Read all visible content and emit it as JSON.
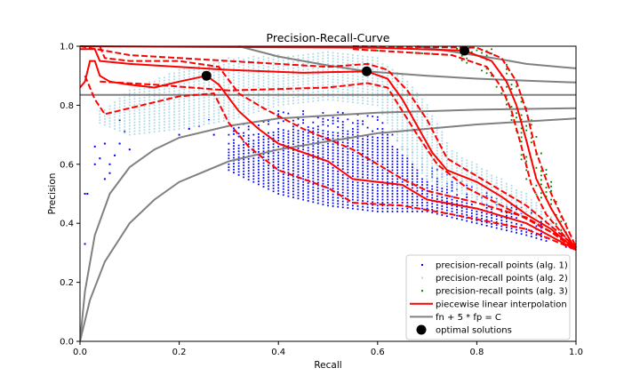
{
  "chart_data": {
    "type": "scatter",
    "title": "Precision-Recall-Curve",
    "xlabel": "Recall",
    "ylabel": "Precision",
    "xlim": [
      0,
      1
    ],
    "ylim": [
      0,
      1
    ],
    "xticks": [
      "0.0",
      "0.2",
      "0.4",
      "0.6",
      "0.8",
      "1.0"
    ],
    "yticks": [
      "0.0",
      "0.2",
      "0.4",
      "0.6",
      "0.8",
      "1.0"
    ],
    "grid": false,
    "legend_position": "bottom-right",
    "colors": {
      "alg1": "#0000ff",
      "alg2": "#add8e6",
      "alg3": "#008000",
      "interp": "#ff0000",
      "iso": "#808080",
      "optimal": "#000000"
    },
    "scatter_series": [
      {
        "name": "precision-recall points (alg. 1)",
        "color": "#0000ff",
        "x_range": [
          0.3,
          1.0
        ],
        "x_step": 0.01,
        "y_step": 0.01,
        "upper": [
          [
            0.3,
            0.72
          ],
          [
            0.4,
            0.78
          ],
          [
            0.5,
            0.78
          ],
          [
            0.6,
            0.76
          ],
          [
            0.65,
            0.7
          ],
          [
            0.7,
            0.6
          ],
          [
            0.8,
            0.52
          ],
          [
            0.9,
            0.45
          ],
          [
            1.0,
            0.33
          ]
        ],
        "lower": [
          [
            0.3,
            0.58
          ],
          [
            0.4,
            0.5
          ],
          [
            0.5,
            0.46
          ],
          [
            0.6,
            0.44
          ],
          [
            0.7,
            0.44
          ],
          [
            0.8,
            0.4
          ],
          [
            0.9,
            0.36
          ],
          [
            1.0,
            0.31
          ]
        ],
        "sparse": [
          [
            0.01,
            0.5
          ],
          [
            0.015,
            0.5
          ],
          [
            0.01,
            0.33
          ],
          [
            0.03,
            0.66
          ],
          [
            0.03,
            0.6
          ],
          [
            0.04,
            0.62
          ],
          [
            0.05,
            0.67
          ],
          [
            0.05,
            0.55
          ],
          [
            0.06,
            0.57
          ],
          [
            0.06,
            0.6
          ],
          [
            0.07,
            0.63
          ],
          [
            0.08,
            0.67
          ],
          [
            0.09,
            0.71
          ],
          [
            0.08,
            0.75
          ],
          [
            0.1,
            0.65
          ],
          [
            0.2,
            0.7
          ],
          [
            0.22,
            0.72
          ],
          [
            0.24,
            0.73
          ],
          [
            0.26,
            0.75
          ],
          [
            0.27,
            0.7
          ]
        ]
      },
      {
        "name": "precision-recall points (alg. 2)",
        "color": "#add8e6",
        "x_range": [
          0.04,
          1.0
        ],
        "x_step": 0.01,
        "y_step": 0.01,
        "upper": [
          [
            0.04,
            0.78
          ],
          [
            0.1,
            0.85
          ],
          [
            0.2,
            0.92
          ],
          [
            0.3,
            0.96
          ],
          [
            0.4,
            0.97
          ],
          [
            0.5,
            0.98
          ],
          [
            0.6,
            0.96
          ],
          [
            0.65,
            0.9
          ],
          [
            0.7,
            0.8
          ],
          [
            0.75,
            0.65
          ],
          [
            0.8,
            0.6
          ],
          [
            0.9,
            0.5
          ],
          [
            1.0,
            0.35
          ]
        ],
        "lower": [
          [
            0.04,
            0.74
          ],
          [
            0.1,
            0.7
          ],
          [
            0.2,
            0.72
          ],
          [
            0.3,
            0.75
          ],
          [
            0.4,
            0.8
          ],
          [
            0.5,
            0.82
          ],
          [
            0.6,
            0.8
          ],
          [
            0.65,
            0.65
          ],
          [
            0.7,
            0.55
          ],
          [
            0.8,
            0.48
          ],
          [
            0.9,
            0.42
          ],
          [
            1.0,
            0.32
          ]
        ]
      },
      {
        "name": "precision-recall points (alg. 3)",
        "color": "#008000",
        "x_range": [
          0.55,
          1.0
        ],
        "x_step": 0.01,
        "y_step": 0.015,
        "upper": [
          [
            0.55,
            1.0
          ],
          [
            0.85,
            0.99
          ],
          [
            0.9,
            0.8
          ],
          [
            0.95,
            0.55
          ],
          [
            1.0,
            0.32
          ]
        ],
        "lower": [
          [
            0.55,
            0.99
          ],
          [
            0.75,
            0.97
          ],
          [
            0.83,
            0.9
          ],
          [
            0.87,
            0.75
          ],
          [
            0.9,
            0.55
          ],
          [
            0.95,
            0.42
          ],
          [
            1.0,
            0.31
          ]
        ]
      }
    ],
    "interpolation": {
      "name": "piecewise linear interpolation",
      "color": "#ff0000",
      "curves": [
        {
          "solid": [
            [
              0,
              0.86
            ],
            [
              0.01,
              0.88
            ],
            [
              0.02,
              0.95
            ],
            [
              0.03,
              0.95
            ],
            [
              0.04,
              0.9
            ],
            [
              0.06,
              0.88
            ],
            [
              0.1,
              0.87
            ],
            [
              0.15,
              0.86
            ],
            [
              0.2,
              0.88
            ],
            [
              0.255,
              0.9
            ],
            [
              0.28,
              0.87
            ],
            [
              0.32,
              0.78
            ],
            [
              0.36,
              0.72
            ],
            [
              0.4,
              0.67
            ],
            [
              0.5,
              0.61
            ],
            [
              0.55,
              0.55
            ],
            [
              0.65,
              0.53
            ],
            [
              0.7,
              0.48
            ],
            [
              0.8,
              0.45
            ],
            [
              0.9,
              0.4
            ],
            [
              1.0,
              0.31
            ]
          ],
          "upper": [
            [
              0.04,
              1.0
            ],
            [
              0.05,
              0.96
            ],
            [
              0.1,
              0.95
            ],
            [
              0.2,
              0.95
            ],
            [
              0.28,
              0.93
            ],
            [
              0.32,
              0.84
            ],
            [
              0.37,
              0.79
            ],
            [
              0.45,
              0.72
            ],
            [
              0.55,
              0.65
            ],
            [
              0.65,
              0.55
            ],
            [
              0.7,
              0.51
            ],
            [
              0.8,
              0.47
            ],
            [
              0.9,
              0.42
            ],
            [
              1.0,
              0.32
            ]
          ],
          "lower": [
            [
              0.01,
              0.9
            ],
            [
              0.03,
              0.82
            ],
            [
              0.05,
              0.77
            ],
            [
              0.1,
              0.79
            ],
            [
              0.2,
              0.83
            ],
            [
              0.27,
              0.84
            ],
            [
              0.3,
              0.74
            ],
            [
              0.34,
              0.66
            ],
            [
              0.4,
              0.58
            ],
            [
              0.5,
              0.52
            ],
            [
              0.55,
              0.47
            ],
            [
              0.65,
              0.46
            ],
            [
              0.75,
              0.43
            ],
            [
              0.9,
              0.38
            ],
            [
              1.0,
              0.31
            ]
          ]
        },
        {
          "solid": [
            [
              0,
              0.99
            ],
            [
              0.03,
              0.99
            ],
            [
              0.04,
              0.95
            ],
            [
              0.1,
              0.94
            ],
            [
              0.3,
              0.92
            ],
            [
              0.45,
              0.91
            ],
            [
              0.578,
              0.915
            ],
            [
              0.62,
              0.89
            ],
            [
              0.65,
              0.82
            ],
            [
              0.68,
              0.73
            ],
            [
              0.71,
              0.64
            ],
            [
              0.74,
              0.58
            ],
            [
              0.8,
              0.54
            ],
            [
              0.85,
              0.49
            ],
            [
              0.9,
              0.43
            ],
            [
              0.95,
              0.38
            ],
            [
              1.0,
              0.31
            ]
          ],
          "upper": [
            [
              0.0,
              1.0
            ],
            [
              0.1,
              0.97
            ],
            [
              0.3,
              0.95
            ],
            [
              0.5,
              0.93
            ],
            [
              0.58,
              0.94
            ],
            [
              0.62,
              0.92
            ],
            [
              0.66,
              0.85
            ],
            [
              0.7,
              0.75
            ],
            [
              0.74,
              0.62
            ],
            [
              0.8,
              0.56
            ],
            [
              0.9,
              0.46
            ],
            [
              1.0,
              0.32
            ]
          ],
          "lower": [
            [
              0.04,
              0.88
            ],
            [
              0.15,
              0.87
            ],
            [
              0.3,
              0.85
            ],
            [
              0.5,
              0.86
            ],
            [
              0.58,
              0.875
            ],
            [
              0.62,
              0.86
            ],
            [
              0.65,
              0.78
            ],
            [
              0.68,
              0.7
            ],
            [
              0.72,
              0.6
            ],
            [
              0.78,
              0.52
            ],
            [
              0.85,
              0.46
            ],
            [
              0.95,
              0.37
            ],
            [
              1.0,
              0.31
            ]
          ]
        },
        {
          "solid": [
            [
              0,
              1.0
            ],
            [
              0.6,
              0.995
            ],
            [
              0.775,
              0.985
            ],
            [
              0.83,
              0.95
            ],
            [
              0.86,
              0.88
            ],
            [
              0.88,
              0.8
            ],
            [
              0.9,
              0.68
            ],
            [
              0.92,
              0.55
            ],
            [
              0.95,
              0.45
            ],
            [
              1.0,
              0.31
            ]
          ],
          "upper": [
            [
              0.55,
              1.0
            ],
            [
              0.8,
              0.995
            ],
            [
              0.85,
              0.96
            ],
            [
              0.88,
              0.88
            ],
            [
              0.9,
              0.78
            ],
            [
              0.92,
              0.64
            ],
            [
              0.95,
              0.5
            ],
            [
              1.0,
              0.32
            ]
          ],
          "lower": [
            [
              0.55,
              0.99
            ],
            [
              0.75,
              0.97
            ],
            [
              0.82,
              0.93
            ],
            [
              0.85,
              0.86
            ],
            [
              0.87,
              0.78
            ],
            [
              0.89,
              0.66
            ],
            [
              0.91,
              0.53
            ],
            [
              0.94,
              0.43
            ],
            [
              1.0,
              0.31
            ]
          ]
        }
      ]
    },
    "iso_cost_lines": {
      "name": "fn + 5 * fp = C",
      "color": "#808080",
      "lines": [
        [
          [
            0.68,
            1.0
          ],
          [
            0.775,
            0.975
          ],
          [
            0.85,
            0.955
          ],
          [
            0.9,
            0.94
          ],
          [
            1.0,
            0.925
          ]
        ],
        [
          [
            0.32,
            1.0
          ],
          [
            0.4,
            0.965
          ],
          [
            0.5,
            0.935
          ],
          [
            0.578,
            0.915
          ],
          [
            0.7,
            0.9
          ],
          [
            0.8,
            0.89
          ],
          [
            0.9,
            0.883
          ],
          [
            1.0,
            0.877
          ]
        ],
        [
          [
            0.0,
            0.835
          ],
          [
            1.0,
            0.835
          ]
        ],
        [
          [
            0,
            0
          ],
          [
            0.01,
            0.17
          ],
          [
            0.03,
            0.36
          ],
          [
            0.06,
            0.5
          ],
          [
            0.1,
            0.59
          ],
          [
            0.15,
            0.65
          ],
          [
            0.2,
            0.69
          ],
          [
            0.3,
            0.73
          ],
          [
            0.4,
            0.755
          ],
          [
            0.6,
            0.775
          ],
          [
            0.8,
            0.785
          ],
          [
            1.0,
            0.79
          ]
        ],
        [
          [
            0,
            0
          ],
          [
            0.02,
            0.14
          ],
          [
            0.05,
            0.27
          ],
          [
            0.1,
            0.4
          ],
          [
            0.15,
            0.48
          ],
          [
            0.2,
            0.54
          ],
          [
            0.3,
            0.61
          ],
          [
            0.4,
            0.65
          ],
          [
            0.6,
            0.705
          ],
          [
            0.8,
            0.735
          ],
          [
            1.0,
            0.755
          ]
        ]
      ]
    },
    "optimal_solutions": {
      "name": "optimal solutions",
      "points": [
        [
          0.255,
          0.9
        ],
        [
          0.578,
          0.915
        ],
        [
          0.775,
          0.985
        ]
      ]
    }
  }
}
